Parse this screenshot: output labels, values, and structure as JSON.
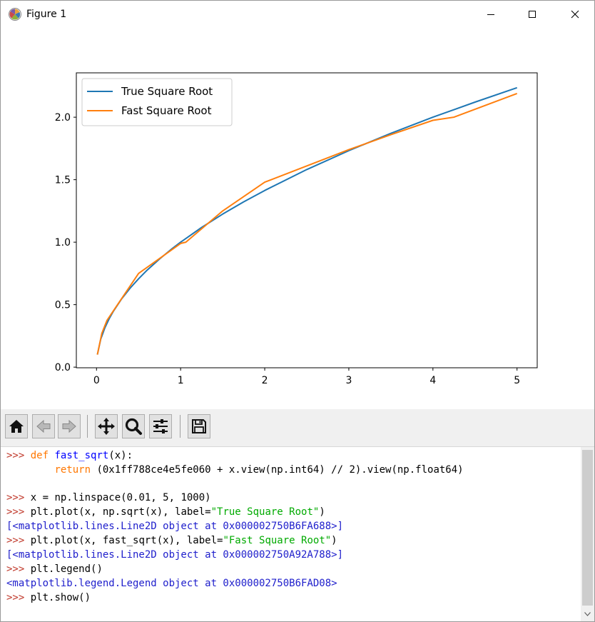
{
  "window": {
    "title": "Figure 1"
  },
  "chart_data": {
    "type": "line",
    "title": "",
    "xlabel": "",
    "ylabel": "",
    "xlim": [
      -0.24,
      5.24
    ],
    "ylim": [
      -0.005,
      2.355
    ],
    "xticks": [
      0,
      1,
      2,
      3,
      4,
      5
    ],
    "xtick_labels": [
      "0",
      "1",
      "2",
      "3",
      "4",
      "5"
    ],
    "yticks": [
      0.0,
      0.5,
      1.0,
      1.5,
      2.0
    ],
    "ytick_labels": [
      "0.0",
      "0.5",
      "1.0",
      "1.5",
      "2.0"
    ],
    "legend_position": "top-left",
    "series": [
      {
        "name": "True Square Root",
        "color": "#1f77b4",
        "x": [
          0.01,
          0.05,
          0.1,
          0.15,
          0.2,
          0.3,
          0.4,
          0.5,
          0.6,
          0.75,
          0.9,
          1.0,
          1.25,
          1.5,
          1.75,
          2.0,
          2.5,
          3.0,
          3.5,
          4.0,
          4.5,
          5.0
        ],
        "values": [
          0.1,
          0.224,
          0.316,
          0.387,
          0.447,
          0.548,
          0.632,
          0.707,
          0.775,
          0.866,
          0.949,
          1.0,
          1.118,
          1.225,
          1.323,
          1.414,
          1.581,
          1.732,
          1.871,
          2.0,
          2.121,
          2.236
        ]
      },
      {
        "name": "Fast Square Root",
        "color": "#ff7f0e",
        "x": [
          0.01,
          0.0625,
          0.125,
          0.25,
          0.5,
          1.0,
          1.0625,
          1.5,
          2.0,
          3.0,
          3.5,
          4.0,
          4.25,
          5.0
        ],
        "values": [
          0.1,
          0.27,
          0.375,
          0.5,
          0.75,
          0.99,
          1.0,
          1.25,
          1.48,
          1.74,
          1.86,
          1.975,
          2.0,
          2.19
        ]
      }
    ]
  },
  "toolbar": {
    "buttons": [
      {
        "name": "home-button",
        "icon": "home-icon"
      },
      {
        "name": "back-button",
        "icon": "arrow-left-icon"
      },
      {
        "name": "forward-button",
        "icon": "arrow-right-icon"
      },
      {
        "name": "pan-button",
        "icon": "move-icon"
      },
      {
        "name": "zoom-button",
        "icon": "magnifier-icon"
      },
      {
        "name": "configure-subplots-button",
        "icon": "sliders-icon"
      },
      {
        "name": "save-button",
        "icon": "floppy-disk-icon"
      }
    ]
  },
  "console": {
    "prompt": ">>>",
    "l1_kw": "def",
    "l1_fn": "fast_sqrt",
    "l1_rest": "(x):",
    "l2_kw": "return",
    "l2_rest": " (0x1ff788ce4e5fe060 + x.view(np.int64) // 2).view(np.float64)",
    "l3": " x = np.linspace(0.01, 5, 1000)",
    "l4_pre": " plt.plot(x, np.sqrt(x), label=",
    "l4_str": "\"True Square Root\"",
    "l4_post": ")",
    "l5": "[<matplotlib.lines.Line2D object at 0x000002750B6FA688>]",
    "l6_pre": " plt.plot(x, fast_sqrt(x), label=",
    "l6_str": "\"Fast Square Root\"",
    "l6_post": ")",
    "l7": "[<matplotlib.lines.Line2D object at 0x000002750A92A788>]",
    "l8": " plt.legend()",
    "l9": "<matplotlib.legend.Legend object at 0x000002750B6FAD08>",
    "l10": " plt.show()"
  }
}
